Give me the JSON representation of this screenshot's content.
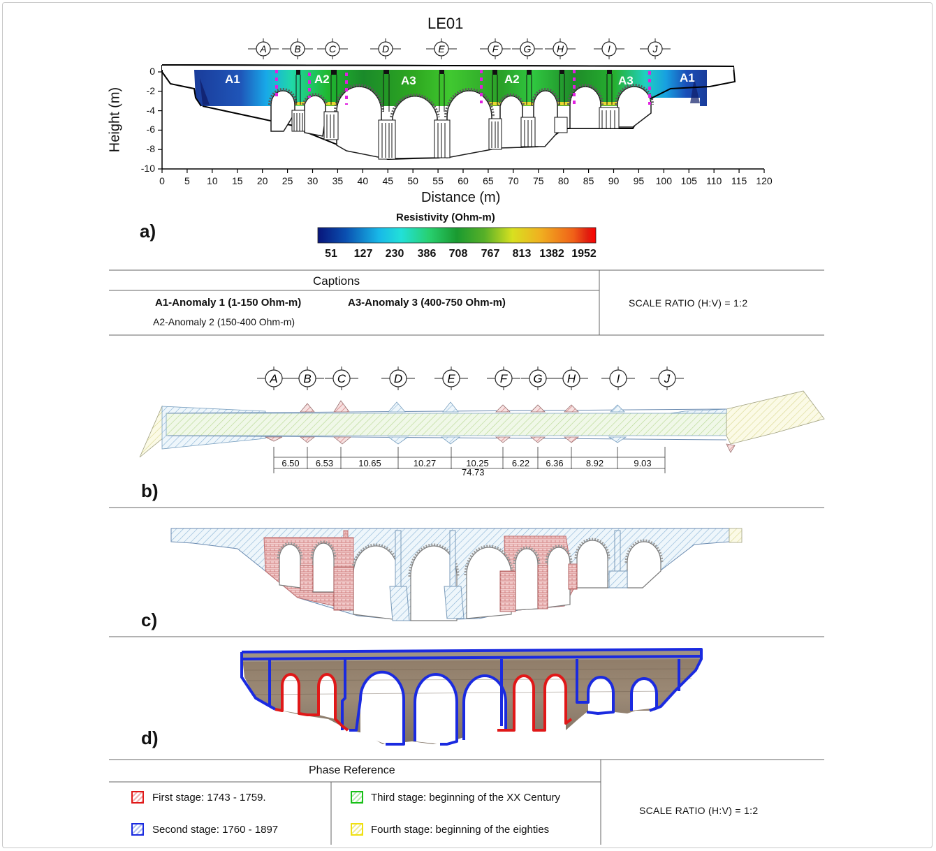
{
  "panel_a": {
    "title": "LE01",
    "axis_x_label": "Distance (m)",
    "axis_y_label": "Height (m)",
    "x_ticks": [
      "0",
      "5",
      "10",
      "15",
      "20",
      "25",
      "30",
      "35",
      "40",
      "45",
      "50",
      "55",
      "60",
      "65",
      "70",
      "75",
      "80",
      "85",
      "90",
      "95",
      "100",
      "105",
      "110",
      "115",
      "120"
    ],
    "y_ticks": [
      "0",
      "-2",
      "-4",
      "-6",
      "-8",
      "-10"
    ],
    "gridlines": [
      "A",
      "B",
      "C",
      "D",
      "E",
      "F",
      "G",
      "H",
      "I",
      "J"
    ],
    "anomaly_labels": [
      "A1",
      "A2",
      "A3",
      "A2",
      "A3",
      "A1"
    ],
    "letter": "a)"
  },
  "colorbar": {
    "title": "Resistivity (Ohm-m)",
    "ticks": [
      "51",
      "127",
      "230",
      "386",
      "708",
      "767",
      "813",
      "1382",
      "1952"
    ],
    "colors": [
      "#0a1a7a",
      "#0a4fb0",
      "#1aa0e0",
      "#22e0e0",
      "#28d070",
      "#1aa030",
      "#3c9a28",
      "#d8e020",
      "#f0a020",
      "#e04010"
    ]
  },
  "captions": {
    "title": "Captions",
    "a1": "A1-Anomaly 1 (1-150 Ohm-m)",
    "a3": "A3-Anomaly 3 (400-750 Ohm-m)",
    "a2": "A2-Anomaly 2 (150-400 Ohm-m)",
    "scale": "SCALE RATIO (H:V) = 1:2"
  },
  "panel_b": {
    "gridlines": [
      "A",
      "B",
      "C",
      "D",
      "E",
      "F",
      "G",
      "H",
      "I",
      "J"
    ],
    "spans": [
      "6.50",
      "6.53",
      "10.65",
      "10.27",
      "10.25",
      "6.22",
      "6.36",
      "8.92",
      "9.03"
    ],
    "total": "74.73",
    "letter": "b)"
  },
  "panel_c": {
    "letter": "c)"
  },
  "panel_d": {
    "letter": "d)"
  },
  "phase": {
    "title": "Phase Reference",
    "first": "First stage: 1743 - 1759.",
    "second": "Second stage: 1760 - 1897",
    "third": "Third stage: beginning of the XX Century",
    "fourth": "Fourth stage: beginning of the eighties",
    "scale": "SCALE RATIO (H:V) = 1:2",
    "color_first": "#e01818",
    "color_second": "#1a2ae0",
    "color_third": "#18c018",
    "color_fourth": "#f0e010"
  }
}
